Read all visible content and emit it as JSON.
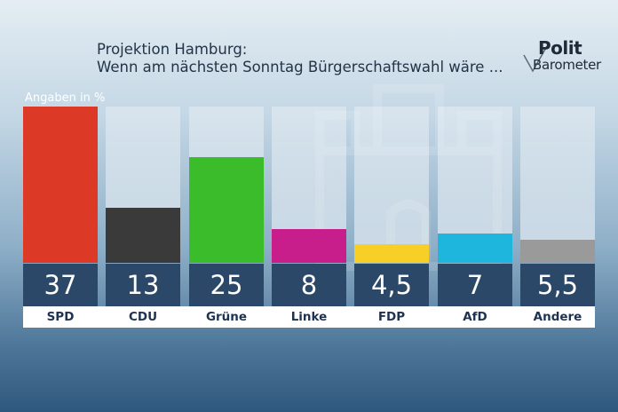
{
  "header": {
    "title_line1": "Projektion Hamburg:",
    "title_line2": "Wenn am nächsten Sonntag Bürgerschaftswahl wäre ..."
  },
  "logo": {
    "word1": "Polit",
    "word2": "Barometer"
  },
  "chart_data": {
    "type": "bar",
    "title": "Projektion Hamburg: Wenn am nächsten Sonntag Bürgerschaftswahl wäre ...",
    "ylabel": "Angaben in %",
    "categories": [
      "SPD",
      "CDU",
      "Grüne",
      "Linke",
      "FDP",
      "AfD",
      "Andere"
    ],
    "values": [
      37,
      13,
      25,
      8,
      4.5,
      7,
      5.5
    ],
    "value_labels": [
      "37",
      "13",
      "25",
      "8",
      "4,5",
      "7",
      "5,5"
    ],
    "colors": [
      "#dc3a26",
      "#3a3a3a",
      "#3bbc2a",
      "#c81e8c",
      "#f7cf26",
      "#1eb6dc",
      "#9a9a9a"
    ],
    "ylim": [
      0,
      37
    ],
    "grid": false,
    "legend": "none"
  }
}
